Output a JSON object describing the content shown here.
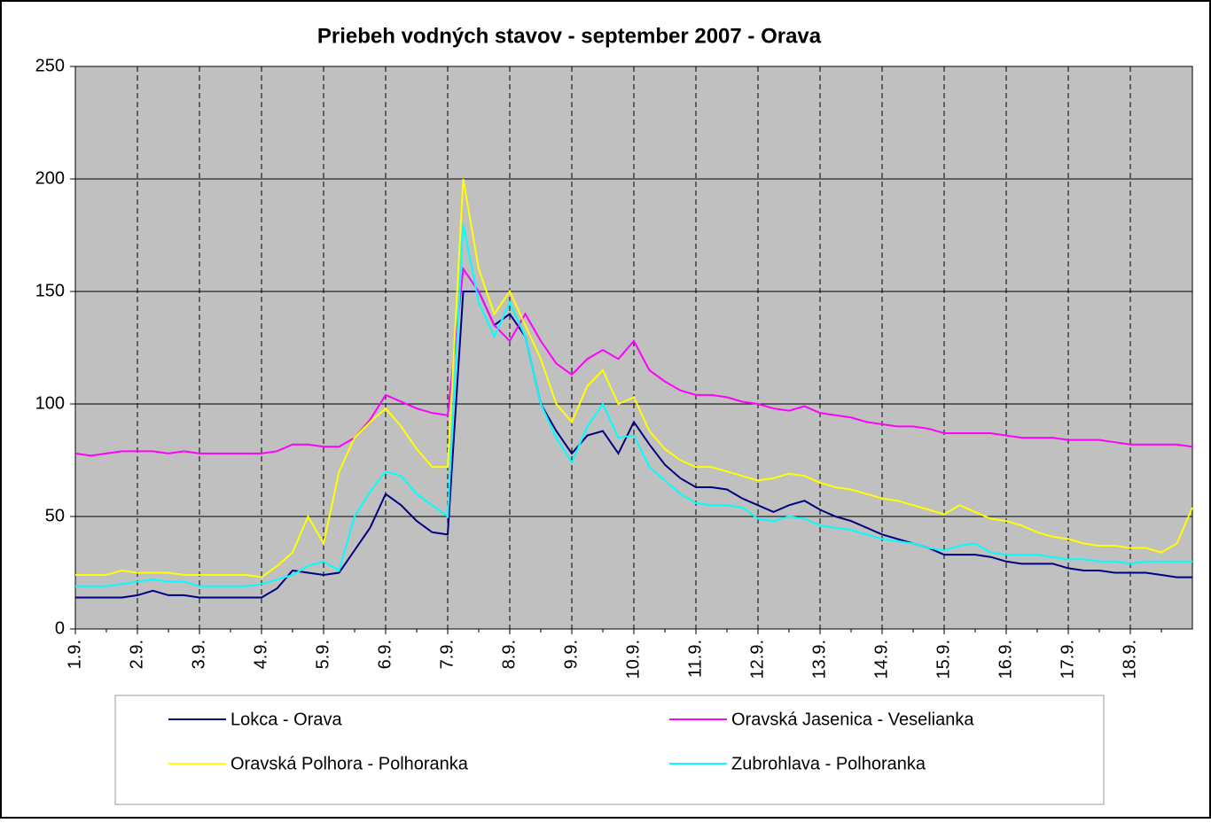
{
  "chart_data": {
    "type": "line",
    "title": "Priebeh vodných stavov - september 2007 - Orava",
    "categories": [
      "1.9.",
      null,
      null,
      null,
      "2.9.",
      null,
      null,
      null,
      "3.9.",
      null,
      null,
      null,
      "4.9.",
      null,
      null,
      null,
      "5.9.",
      null,
      null,
      null,
      "6.9.",
      null,
      null,
      null,
      "7.9.",
      null,
      null,
      null,
      "8.9.",
      null,
      null,
      null,
      "9.9.",
      null,
      null,
      null,
      "10.9.",
      null,
      null,
      null,
      "11.9.",
      null,
      null,
      null,
      "12.9.",
      null,
      null,
      null,
      "13.9.",
      null,
      null,
      null,
      "14.9.",
      null,
      null,
      null,
      "15.9.",
      null,
      null,
      null,
      "16.9.",
      null,
      null,
      null,
      "17.9.",
      null,
      null,
      null,
      "18.9.",
      null,
      null,
      null,
      null
    ],
    "series": [
      {
        "name": "Lokca - Orava",
        "color": "#000080",
        "values": [
          14,
          14,
          14,
          14,
          15,
          17,
          15,
          15,
          14,
          14,
          14,
          14,
          14,
          18,
          26,
          25,
          24,
          25,
          35,
          45,
          60,
          55,
          48,
          43,
          42,
          150,
          150,
          135,
          140,
          130,
          100,
          88,
          78,
          86,
          88,
          78,
          92,
          82,
          73,
          67,
          63,
          63,
          62,
          58,
          55,
          52,
          55,
          57,
          53,
          50,
          48,
          45,
          42,
          40,
          38,
          36,
          33,
          33,
          33,
          32,
          30,
          29,
          29,
          29,
          27,
          26,
          26,
          25,
          25,
          25,
          24,
          23,
          23
        ]
      },
      {
        "name": "Oravská Jasenica - Veselianka",
        "color": "#ff00ff",
        "values": [
          78,
          77,
          78,
          79,
          79,
          79,
          78,
          79,
          78,
          78,
          78,
          78,
          78,
          79,
          82,
          82,
          81,
          81,
          85,
          93,
          104,
          101,
          98,
          96,
          95,
          160,
          150,
          135,
          128,
          140,
          128,
          118,
          113,
          120,
          124,
          120,
          128,
          115,
          110,
          106,
          104,
          104,
          103,
          101,
          100,
          98,
          97,
          99,
          96,
          95,
          94,
          92,
          91,
          90,
          90,
          89,
          87,
          87,
          87,
          87,
          86,
          85,
          85,
          85,
          84,
          84,
          84,
          83,
          82,
          82,
          82,
          82,
          81
        ]
      },
      {
        "name": "Oravská Polhora - Polhoranka",
        "color": "#ffff00",
        "values": [
          24,
          24,
          24,
          26,
          25,
          25,
          25,
          24,
          24,
          24,
          24,
          24,
          23,
          28,
          34,
          50,
          38,
          70,
          85,
          92,
          98,
          90,
          80,
          72,
          72,
          200,
          160,
          140,
          150,
          135,
          120,
          100,
          92,
          108,
          115,
          100,
          103,
          88,
          80,
          75,
          72,
          72,
          70,
          68,
          66,
          67,
          69,
          68,
          65,
          63,
          62,
          60,
          58,
          57,
          55,
          53,
          51,
          55,
          52,
          49,
          48,
          46,
          43,
          41,
          40,
          38,
          37,
          37,
          36,
          36,
          34,
          38,
          54
        ]
      },
      {
        "name": "Zubrohlava - Polhoranka",
        "color": "#00ffff",
        "values": [
          19,
          19,
          19,
          20,
          21,
          22,
          21,
          21,
          19,
          19,
          19,
          19,
          20,
          22,
          24,
          28,
          30,
          26,
          50,
          61,
          70,
          68,
          60,
          55,
          50,
          180,
          145,
          130,
          145,
          130,
          100,
          85,
          74,
          90,
          100,
          85,
          86,
          72,
          66,
          60,
          56,
          55,
          55,
          54,
          49,
          48,
          50,
          49,
          46,
          45,
          44,
          42,
          40,
          39,
          38,
          36,
          35,
          37,
          38,
          34,
          33,
          33,
          33,
          32,
          31,
          31,
          30,
          30,
          29,
          30,
          30,
          30,
          30
        ]
      }
    ],
    "ylim": [
      0,
      250
    ],
    "yticks": [
      0,
      50,
      100,
      150,
      200,
      250
    ],
    "grid": true,
    "plot_background": "#c0c0c0",
    "legend": "bottom"
  }
}
